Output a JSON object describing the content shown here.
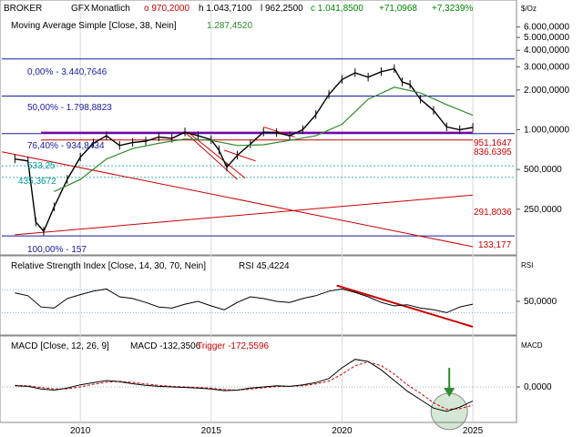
{
  "header": {
    "symbol": "BROKER",
    "instrument": "GFX",
    "interval": "Monatlich",
    "open": "o 970,2000",
    "high": "h 1.043,7100",
    "low": "l 962,2500",
    "close": "c 1.041,8500",
    "change": "+71,0968",
    "change_pct": "+7,3239%",
    "unit": "$/Oz"
  },
  "ma_label": "Moving Average Simple [Close, 38, Nein]",
  "ma_value": "1.287,4520",
  "rsi_title": "Relative Strength Index [Close, 14, 30, 70, Nein]",
  "rsi_value": "RSI 45,4224",
  "rsi_axis": "RSI",
  "macd_title": "MACD [Close, 12, 26, 9]",
  "macd_value": "MACD -132,3506",
  "trigger_value": "Trigger -172,5596",
  "macd_axis": "MACD",
  "fib_labels": {
    "f0": "0,00% - 3.440,7646",
    "f50": "50,00% - 1.798,8823",
    "f764": "76,40% - 934,8434",
    "f100": "100,00% - 157"
  },
  "level_labels": {
    "a": "533,25",
    "b": "435,3672",
    "c": "951,1647",
    "d": "836,6395",
    "e": "291,8036",
    "f": "133,177"
  },
  "colors": {
    "candle": "#000000",
    "ma": "#2e8b2e",
    "fib": "#1a1aa0",
    "trend": "#cc0000",
    "level_line": "#009999",
    "signal": "#2e8b2e"
  },
  "chart_data": [
    {
      "type": "line",
      "name": "price",
      "y_scale": "log",
      "x_ticks": [
        "2010",
        "2015",
        "2020",
        "2025"
      ],
      "y_ticks": [
        "6.000,0000",
        "5.000,0000",
        "4.000,0000",
        "3.000,0000",
        "2.000,0000",
        "1.000,0000",
        "500,0000",
        "250,0000"
      ],
      "x": [
        2007.5,
        2008,
        2008.3,
        2008.6,
        2009,
        2009.5,
        2010,
        2010.5,
        2011,
        2011.5,
        2012,
        2012.5,
        2013,
        2013.5,
        2014,
        2014.5,
        2015,
        2015.3,
        2015.6,
        2016,
        2016.5,
        2017,
        2017.5,
        2018,
        2018.5,
        2019,
        2019.5,
        2020,
        2020.5,
        2021,
        2021.5,
        2022,
        2022.3,
        2022.6,
        2023,
        2023.5,
        2024,
        2024.5,
        2025
      ],
      "y": [
        600,
        580,
        200,
        170,
        260,
        420,
        620,
        790,
        900,
        760,
        800,
        820,
        880,
        860,
        960,
        900,
        840,
        700,
        520,
        640,
        780,
        960,
        950,
        900,
        1000,
        1300,
        1850,
        2400,
        2700,
        2500,
        2750,
        2900,
        2300,
        2200,
        1700,
        1400,
        1050,
        1000,
        1040
      ],
      "ma_x": [
        2009,
        2010,
        2011,
        2012,
        2013,
        2014,
        2015,
        2016,
        2017,
        2018,
        2019,
        2020,
        2021,
        2022,
        2023,
        2024,
        2025
      ],
      "ma_y": [
        340,
        420,
        600,
        720,
        790,
        850,
        830,
        760,
        770,
        830,
        900,
        1100,
        1700,
        2100,
        1900,
        1550,
        1287
      ]
    },
    {
      "type": "line",
      "name": "rsi",
      "ylim": [
        0,
        100
      ],
      "y_ticks": [
        "50,0000"
      ],
      "x": [
        2007.5,
        2008,
        2008.5,
        2009,
        2009.5,
        2010,
        2010.5,
        2011,
        2011.5,
        2012,
        2012.5,
        2013,
        2013.5,
        2014,
        2014.5,
        2015,
        2015.5,
        2016,
        2016.5,
        2017,
        2017.5,
        2018,
        2018.5,
        2019,
        2019.5,
        2020,
        2020.5,
        2021,
        2021.5,
        2022,
        2022.5,
        2023,
        2023.5,
        2024,
        2024.5,
        2025
      ],
      "y": [
        65,
        60,
        40,
        38,
        55,
        62,
        68,
        72,
        58,
        55,
        48,
        40,
        38,
        45,
        50,
        42,
        35,
        48,
        58,
        55,
        50,
        48,
        55,
        60,
        68,
        72,
        66,
        58,
        48,
        42,
        44,
        38,
        35,
        30,
        40,
        45
      ]
    },
    {
      "type": "line",
      "name": "macd",
      "y_ticks": [
        "0,0000"
      ],
      "x": [
        2007.5,
        2008,
        2008.5,
        2009,
        2009.5,
        2010,
        2010.5,
        2011,
        2011.5,
        2012,
        2012.5,
        2013,
        2013.5,
        2014,
        2014.5,
        2015,
        2015.5,
        2016,
        2016.5,
        2017,
        2017.5,
        2018,
        2018.5,
        2019,
        2019.5,
        2020,
        2020.5,
        2021,
        2021.5,
        2022,
        2022.5,
        2023,
        2023.5,
        2024,
        2024.5,
        2025
      ],
      "y": [
        10,
        5,
        -20,
        -30,
        -10,
        20,
        40,
        60,
        50,
        30,
        15,
        5,
        0,
        -5,
        -10,
        -20,
        -35,
        -30,
        -10,
        0,
        10,
        5,
        20,
        40,
        80,
        180,
        260,
        240,
        160,
        60,
        -40,
        -120,
        -200,
        -230,
        -190,
        -132
      ],
      "trigger_y": [
        15,
        10,
        -5,
        -20,
        -18,
        0,
        25,
        45,
        52,
        42,
        28,
        15,
        5,
        0,
        -5,
        -12,
        -25,
        -30,
        -20,
        -8,
        3,
        5,
        12,
        28,
        55,
        120,
        200,
        235,
        200,
        120,
        20,
        -60,
        -150,
        -210,
        -205,
        -172
      ]
    }
  ]
}
